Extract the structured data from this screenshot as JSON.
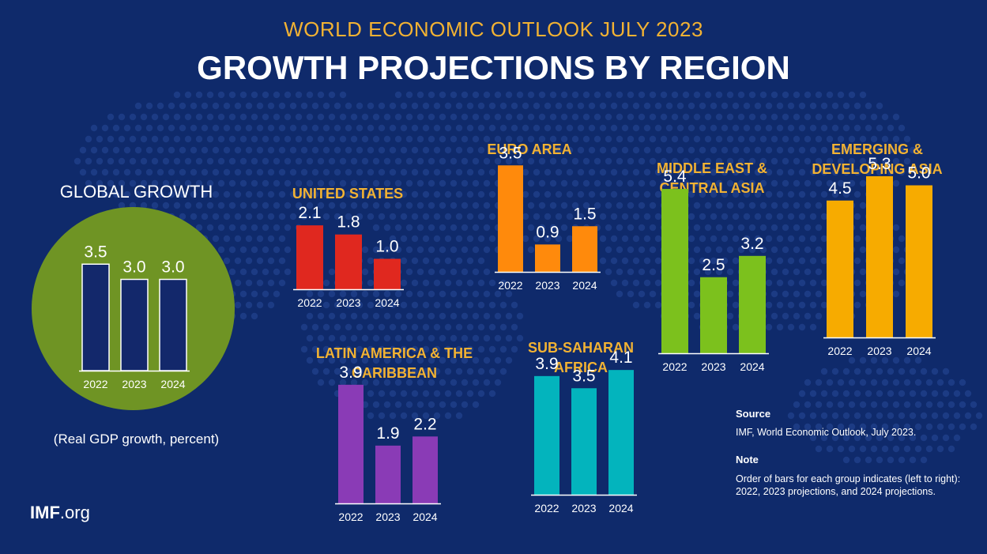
{
  "header": {
    "kicker": "WORLD ECONOMIC OUTLOOK JULY 2023",
    "title": "GROWTH PROJECTIONS BY REGION"
  },
  "global_panel": {
    "title": "GLOBAL GROWTH",
    "unit_note": "(Real GDP growth, percent)"
  },
  "footer": {
    "logo_bold": "IMF",
    "logo_rest": ".org",
    "source_label": "Source",
    "source_text": "IMF, World Economic Outlook, July 2023.",
    "note_label": "Note",
    "note_text": "Order of bars for each group indicates (left to right): 2022, 2023 projections, and 2024 projections."
  },
  "chart_data": [
    {
      "type": "bar",
      "title": "GLOBAL GROWTH",
      "categories": [
        "2022",
        "2023",
        "2024"
      ],
      "values": [
        3.5,
        3.0,
        3.0
      ],
      "value_labels": [
        "3.5",
        "3.0",
        "3.0"
      ],
      "color": "#13286b"
    },
    {
      "type": "bar",
      "title": "UNITED STATES",
      "categories": [
        "2022",
        "2023",
        "2024"
      ],
      "values": [
        2.1,
        1.8,
        1.0
      ],
      "value_labels": [
        "2.1",
        "1.8",
        "1.0"
      ],
      "color": "#e0281f"
    },
    {
      "type": "bar",
      "title": "EURO AREA",
      "categories": [
        "2022",
        "2023",
        "2024"
      ],
      "values": [
        3.5,
        0.9,
        1.5
      ],
      "value_labels": [
        "3.5",
        "0.9",
        "1.5"
      ],
      "color": "#ff8a0c"
    },
    {
      "type": "bar",
      "title": "MIDDLE EAST & CENTRAL ASIA",
      "categories": [
        "2022",
        "2023",
        "2024"
      ],
      "values": [
        5.4,
        2.5,
        3.2
      ],
      "value_labels": [
        "5.4",
        "2.5",
        "3.2"
      ],
      "color": "#7cc11d"
    },
    {
      "type": "bar",
      "title": "EMERGING & DEVELOPING ASIA",
      "categories": [
        "2022",
        "2023",
        "2024"
      ],
      "values": [
        4.5,
        5.3,
        5.0
      ],
      "value_labels": [
        "4.5",
        "5.3",
        "5.0"
      ],
      "color": "#f7ab00"
    },
    {
      "type": "bar",
      "title": "LATIN AMERICA & THE CARIBBEAN",
      "categories": [
        "2022",
        "2023",
        "2024"
      ],
      "values": [
        3.9,
        1.9,
        2.2
      ],
      "value_labels": [
        "3.9",
        "1.9",
        "2.2"
      ],
      "color": "#8a3bb6"
    },
    {
      "type": "bar",
      "title": "SUB-SAHARAN AFRICA",
      "categories": [
        "2022",
        "2023",
        "2024"
      ],
      "values": [
        3.9,
        3.5,
        4.1
      ],
      "value_labels": [
        "3.9",
        "3.5",
        "4.1"
      ],
      "color": "#03b4bd"
    }
  ]
}
